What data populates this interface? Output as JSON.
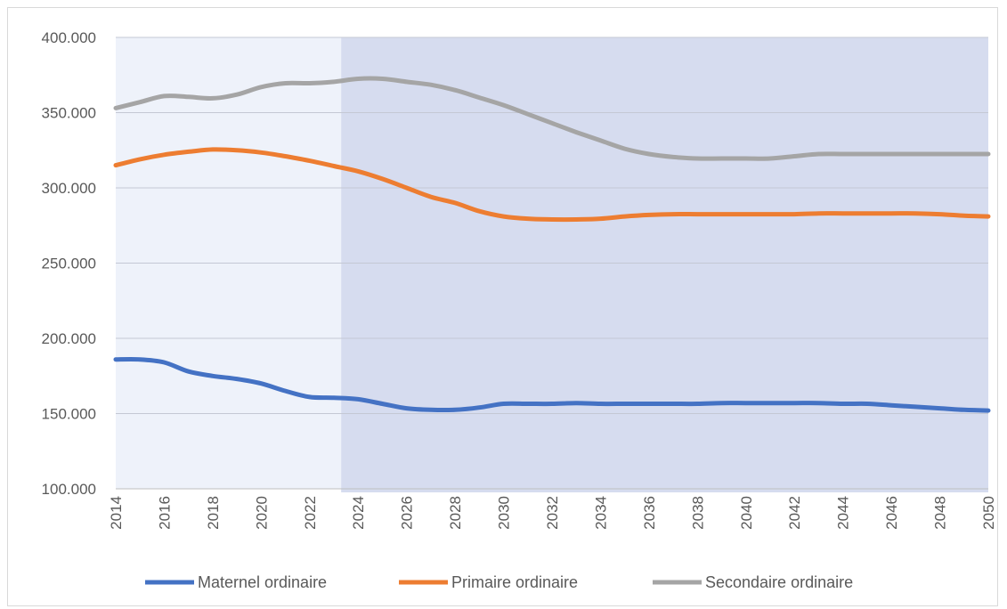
{
  "chart_data": {
    "type": "line",
    "title": "",
    "xlabel": "",
    "ylabel": "",
    "x": [
      2014,
      2015,
      2016,
      2017,
      2018,
      2019,
      2020,
      2021,
      2022,
      2023,
      2024,
      2025,
      2026,
      2027,
      2028,
      2029,
      2030,
      2031,
      2032,
      2033,
      2034,
      2035,
      2036,
      2037,
      2038,
      2039,
      2040,
      2041,
      2042,
      2043,
      2044,
      2045,
      2046,
      2047,
      2048,
      2049,
      2050
    ],
    "x_tick_labels": [
      "2014",
      "2016",
      "2018",
      "2020",
      "2022",
      "2024",
      "2026",
      "2028",
      "2030",
      "2032",
      "2034",
      "2036",
      "2038",
      "2040",
      "2042",
      "2044",
      "2046",
      "2048",
      "2050"
    ],
    "y_tick_labels": [
      "100.000",
      "150.000",
      "200.000",
      "250.000",
      "300.000",
      "350.000",
      "400.000"
    ],
    "y_ticks": [
      100000,
      150000,
      200000,
      250000,
      300000,
      350000,
      400000
    ],
    "ylim": [
      100000,
      400000
    ],
    "grid": true,
    "legend_position": "bottom",
    "projection_shading_from_x": 2023.3,
    "background_colors": {
      "historical": "#eef2fa",
      "projection": "#d6dcef"
    },
    "series": [
      {
        "name": "Maternel ordinaire",
        "color": "#4472c4",
        "values": [
          186000,
          186000,
          184000,
          178000,
          175000,
          173000,
          170000,
          165000,
          161000,
          160500,
          159500,
          156500,
          153500,
          152500,
          152500,
          154000,
          156500,
          156500,
          156500,
          157000,
          156500,
          156500,
          156500,
          156500,
          156500,
          157000,
          157000,
          157000,
          157000,
          157000,
          156500,
          156500,
          155500,
          154500,
          153500,
          152500,
          152000
        ]
      },
      {
        "name": "Primaire ordinaire",
        "color": "#ed7d31",
        "values": [
          315000,
          319000,
          322000,
          324000,
          325500,
          325000,
          323500,
          321000,
          318000,
          314500,
          311000,
          306000,
          300000,
          294000,
          290000,
          284500,
          281000,
          279500,
          279000,
          279000,
          279500,
          281000,
          282000,
          282500,
          282500,
          282500,
          282500,
          282500,
          282500,
          283000,
          283000,
          283000,
          283000,
          283000,
          282500,
          281500,
          281000
        ]
      },
      {
        "name": "Secondaire ordinaire",
        "color": "#a5a5a5",
        "values": [
          353000,
          357000,
          361000,
          360500,
          359500,
          362000,
          367000,
          369500,
          369500,
          370500,
          372500,
          372500,
          370500,
          368500,
          365000,
          360000,
          355000,
          349000,
          343000,
          337000,
          331500,
          326000,
          322500,
          320500,
          319500,
          319500,
          319500,
          319500,
          321000,
          322500,
          322500,
          322500,
          322500,
          322500,
          322500,
          322500,
          322500
        ]
      }
    ]
  }
}
